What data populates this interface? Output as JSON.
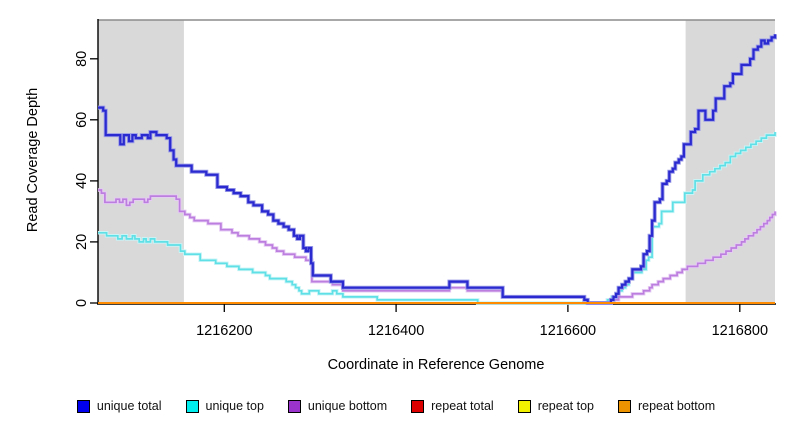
{
  "chart_data": {
    "type": "line",
    "subtype": "step",
    "title": "",
    "xlabel": "Coordinate in Reference Genome",
    "ylabel": "Read Coverage Depth",
    "xlim": [
      1216053,
      1216841
    ],
    "ylim": [
      0,
      92.7
    ],
    "x_ticks": [
      1216200,
      1216400,
      1216600,
      1216800
    ],
    "y_ticks": [
      0,
      20,
      40,
      60,
      80
    ],
    "grid": false,
    "legend_position": "bottom",
    "background_color": "#ffffff",
    "axis_color": "#000000",
    "top_boundary_color": "#8c8c8c",
    "shaded_regions": {
      "color": "#d9d9d9",
      "x_ranges": [
        [
          1216053,
          1216153
        ],
        [
          1216737,
          1216841
        ]
      ]
    },
    "legend": [
      {
        "label": "unique total",
        "color": "#0000ee"
      },
      {
        "label": "unique top",
        "color": "#00eeee"
      },
      {
        "label": "unique bottom",
        "color": "#9933cc"
      },
      {
        "label": "repeat total",
        "color": "#dd0000"
      },
      {
        "label": "repeat top",
        "color": "#f2f200"
      },
      {
        "label": "repeat bottom",
        "color": "#ee9300"
      }
    ],
    "series": [
      {
        "name": "repeat total",
        "color": "#dd0000",
        "halo": null,
        "width": 1.6,
        "points": [
          [
            1216053,
            0
          ],
          [
            1216841,
            0
          ]
        ]
      },
      {
        "name": "repeat top",
        "color": "#f2f200",
        "halo": null,
        "width": 1.6,
        "points": [
          [
            1216053,
            0
          ],
          [
            1216841,
            0
          ]
        ]
      },
      {
        "name": "unique bottom",
        "color": "#bd7fdf",
        "halo": "#e6ccf4",
        "width": 1.7,
        "points": [
          [
            1216053,
            37
          ],
          [
            1216057,
            36
          ],
          [
            1216061,
            33
          ],
          [
            1216071,
            33
          ],
          [
            1216074,
            34
          ],
          [
            1216078,
            33
          ],
          [
            1216082,
            34
          ],
          [
            1216086,
            32
          ],
          [
            1216090,
            33
          ],
          [
            1216094,
            34
          ],
          [
            1216104,
            34
          ],
          [
            1216107,
            33
          ],
          [
            1216111,
            34
          ],
          [
            1216114,
            35
          ],
          [
            1216141,
            35
          ],
          [
            1216144,
            34
          ],
          [
            1216148,
            30
          ],
          [
            1216154,
            29
          ],
          [
            1216160,
            28
          ],
          [
            1216165,
            27
          ],
          [
            1216178,
            27
          ],
          [
            1216181,
            26
          ],
          [
            1216193,
            26
          ],
          [
            1216196,
            24
          ],
          [
            1216209,
            23
          ],
          [
            1216216,
            22
          ],
          [
            1216229,
            21
          ],
          [
            1216241,
            20
          ],
          [
            1216248,
            19
          ],
          [
            1216256,
            18
          ],
          [
            1216261,
            17
          ],
          [
            1216269,
            16
          ],
          [
            1216279,
            16
          ],
          [
            1216282,
            15
          ],
          [
            1216295,
            14
          ],
          [
            1216302,
            7
          ],
          [
            1216326,
            6
          ],
          [
            1216338,
            4
          ],
          [
            1216459,
            4
          ],
          [
            1216462,
            5
          ],
          [
            1216480,
            5
          ],
          [
            1216483,
            4
          ],
          [
            1216521,
            4
          ],
          [
            1216524,
            2
          ],
          [
            1216613,
            2
          ],
          [
            1216619,
            1
          ],
          [
            1216623,
            0
          ],
          [
            1216641,
            0
          ],
          [
            1216646,
            1
          ],
          [
            1216656,
            1
          ],
          [
            1216659,
            2
          ],
          [
            1216671,
            2
          ],
          [
            1216675,
            3
          ],
          [
            1216685,
            3
          ],
          [
            1216688,
            4
          ],
          [
            1216695,
            5
          ],
          [
            1216698,
            6
          ],
          [
            1216705,
            7
          ],
          [
            1216711,
            8
          ],
          [
            1216716,
            8
          ],
          [
            1216719,
            9
          ],
          [
            1216724,
            9
          ],
          [
            1216727,
            10
          ],
          [
            1216733,
            11
          ],
          [
            1216739,
            12
          ],
          [
            1216747,
            12
          ],
          [
            1216751,
            13
          ],
          [
            1216757,
            13
          ],
          [
            1216760,
            14
          ],
          [
            1216766,
            14
          ],
          [
            1216769,
            15
          ],
          [
            1216775,
            15
          ],
          [
            1216778,
            16
          ],
          [
            1216784,
            17
          ],
          [
            1216790,
            18
          ],
          [
            1216796,
            19
          ],
          [
            1216802,
            20
          ],
          [
            1216806,
            21
          ],
          [
            1216810,
            22
          ],
          [
            1216816,
            23
          ],
          [
            1216820,
            24
          ],
          [
            1216824,
            25
          ],
          [
            1216828,
            26
          ],
          [
            1216832,
            27
          ],
          [
            1216835,
            28
          ],
          [
            1216838,
            29
          ],
          [
            1216841,
            30
          ]
        ]
      },
      {
        "name": "unique top",
        "color": "#5fdfe6",
        "halo": "#c9f5f7",
        "width": 1.7,
        "points": [
          [
            1216053,
            23
          ],
          [
            1216059,
            23
          ],
          [
            1216063,
            22
          ],
          [
            1216073,
            22
          ],
          [
            1216076,
            21
          ],
          [
            1216081,
            22
          ],
          [
            1216086,
            21
          ],
          [
            1216093,
            22
          ],
          [
            1216096,
            21
          ],
          [
            1216101,
            20
          ],
          [
            1216106,
            21
          ],
          [
            1216109,
            20
          ],
          [
            1216114,
            21
          ],
          [
            1216119,
            20
          ],
          [
            1216131,
            20
          ],
          [
            1216134,
            19
          ],
          [
            1216146,
            19
          ],
          [
            1216149,
            17
          ],
          [
            1216154,
            16
          ],
          [
            1216169,
            16
          ],
          [
            1216172,
            14
          ],
          [
            1216187,
            14
          ],
          [
            1216190,
            13
          ],
          [
            1216200,
            13
          ],
          [
            1216203,
            12
          ],
          [
            1216214,
            12
          ],
          [
            1216217,
            11
          ],
          [
            1216230,
            11
          ],
          [
            1216233,
            10
          ],
          [
            1216245,
            10
          ],
          [
            1216248,
            9
          ],
          [
            1216253,
            8
          ],
          [
            1216269,
            8
          ],
          [
            1216272,
            7
          ],
          [
            1216279,
            6
          ],
          [
            1216283,
            5
          ],
          [
            1216287,
            4
          ],
          [
            1216290,
            3
          ],
          [
            1216296,
            3
          ],
          [
            1216299,
            4
          ],
          [
            1216306,
            4
          ],
          [
            1216310,
            3
          ],
          [
            1216322,
            3
          ],
          [
            1216326,
            4
          ],
          [
            1216331,
            3
          ],
          [
            1216338,
            2
          ],
          [
            1216360,
            2
          ],
          [
            1216378,
            1
          ],
          [
            1216491,
            1
          ],
          [
            1216495,
            0
          ],
          [
            1216641,
            0
          ],
          [
            1216646,
            1
          ],
          [
            1216651,
            2
          ],
          [
            1216656,
            3
          ],
          [
            1216659,
            4
          ],
          [
            1216663,
            5
          ],
          [
            1216667,
            6
          ],
          [
            1216671,
            8
          ],
          [
            1216675,
            10
          ],
          [
            1216682,
            10
          ],
          [
            1216686,
            11
          ],
          [
            1216691,
            14
          ],
          [
            1216694,
            15
          ],
          [
            1216698,
            25
          ],
          [
            1216706,
            26
          ],
          [
            1216709,
            30
          ],
          [
            1216719,
            30
          ],
          [
            1216722,
            33
          ],
          [
            1216733,
            33
          ],
          [
            1216736,
            36
          ],
          [
            1216745,
            37
          ],
          [
            1216748,
            40
          ],
          [
            1216754,
            40
          ],
          [
            1216757,
            42
          ],
          [
            1216765,
            43
          ],
          [
            1216771,
            44
          ],
          [
            1216777,
            45
          ],
          [
            1216783,
            46
          ],
          [
            1216789,
            48
          ],
          [
            1216795,
            49
          ],
          [
            1216801,
            50
          ],
          [
            1216807,
            51
          ],
          [
            1216813,
            52
          ],
          [
            1216819,
            53
          ],
          [
            1216825,
            54
          ],
          [
            1216831,
            55
          ],
          [
            1216838,
            55
          ],
          [
            1216841,
            56
          ]
        ]
      },
      {
        "name": "unique total",
        "color": "#2a2ad0",
        "halo": "#9b9be8",
        "width": 2.2,
        "points": [
          [
            1216053,
            64
          ],
          [
            1216059,
            63
          ],
          [
            1216062,
            55
          ],
          [
            1216076,
            55
          ],
          [
            1216079,
            52
          ],
          [
            1216083,
            55
          ],
          [
            1216089,
            53
          ],
          [
            1216093,
            55
          ],
          [
            1216097,
            54
          ],
          [
            1216104,
            55
          ],
          [
            1216111,
            54
          ],
          [
            1216114,
            56
          ],
          [
            1216121,
            55
          ],
          [
            1216129,
            55
          ],
          [
            1216133,
            54
          ],
          [
            1216137,
            50
          ],
          [
            1216141,
            47
          ],
          [
            1216144,
            45
          ],
          [
            1216158,
            45
          ],
          [
            1216162,
            43
          ],
          [
            1216176,
            43
          ],
          [
            1216179,
            42
          ],
          [
            1216189,
            42
          ],
          [
            1216192,
            38
          ],
          [
            1216203,
            37
          ],
          [
            1216211,
            36
          ],
          [
            1216219,
            35
          ],
          [
            1216228,
            33
          ],
          [
            1216234,
            32
          ],
          [
            1216244,
            30
          ],
          [
            1216251,
            29
          ],
          [
            1216257,
            27
          ],
          [
            1216263,
            26
          ],
          [
            1216269,
            25
          ],
          [
            1216275,
            24
          ],
          [
            1216281,
            22
          ],
          [
            1216285,
            21
          ],
          [
            1216288,
            22
          ],
          [
            1216292,
            18
          ],
          [
            1216295,
            17
          ],
          [
            1216298,
            18
          ],
          [
            1216301,
            13
          ],
          [
            1216303,
            9
          ],
          [
            1216324,
            7
          ],
          [
            1216338,
            5
          ],
          [
            1216459,
            5
          ],
          [
            1216462,
            7
          ],
          [
            1216480,
            7
          ],
          [
            1216483,
            5
          ],
          [
            1216521,
            5
          ],
          [
            1216524,
            2
          ],
          [
            1216613,
            2
          ],
          [
            1216619,
            1
          ],
          [
            1216623,
            0
          ],
          [
            1216646,
            0
          ],
          [
            1216650,
            1
          ],
          [
            1216653,
            2
          ],
          [
            1216656,
            3
          ],
          [
            1216659,
            5
          ],
          [
            1216663,
            6
          ],
          [
            1216667,
            7
          ],
          [
            1216671,
            8
          ],
          [
            1216675,
            11
          ],
          [
            1216682,
            11
          ],
          [
            1216685,
            12
          ],
          [
            1216688,
            16
          ],
          [
            1216692,
            17
          ],
          [
            1216695,
            22
          ],
          [
            1216698,
            27
          ],
          [
            1216701,
            33
          ],
          [
            1216707,
            34
          ],
          [
            1216710,
            39
          ],
          [
            1216715,
            40
          ],
          [
            1216718,
            43
          ],
          [
            1216722,
            44
          ],
          [
            1216725,
            46
          ],
          [
            1216729,
            47
          ],
          [
            1216732,
            48
          ],
          [
            1216735,
            52
          ],
          [
            1216740,
            52
          ],
          [
            1216743,
            56
          ],
          [
            1216748,
            57
          ],
          [
            1216752,
            63
          ],
          [
            1216757,
            63
          ],
          [
            1216760,
            60
          ],
          [
            1216766,
            60
          ],
          [
            1216769,
            63
          ],
          [
            1216772,
            67
          ],
          [
            1216779,
            67
          ],
          [
            1216782,
            71
          ],
          [
            1216789,
            72
          ],
          [
            1216792,
            75
          ],
          [
            1216799,
            75
          ],
          [
            1216802,
            78
          ],
          [
            1216809,
            78
          ],
          [
            1216812,
            80
          ],
          [
            1216816,
            83
          ],
          [
            1216821,
            84
          ],
          [
            1216825,
            86
          ],
          [
            1216829,
            85
          ],
          [
            1216833,
            86
          ],
          [
            1216837,
            87
          ],
          [
            1216841,
            88
          ]
        ]
      },
      {
        "name": "repeat bottom",
        "color": "#ff8c00",
        "halo": null,
        "width": 2.1,
        "points": [
          [
            1216053,
            0
          ],
          [
            1216841,
            0
          ]
        ]
      }
    ]
  }
}
